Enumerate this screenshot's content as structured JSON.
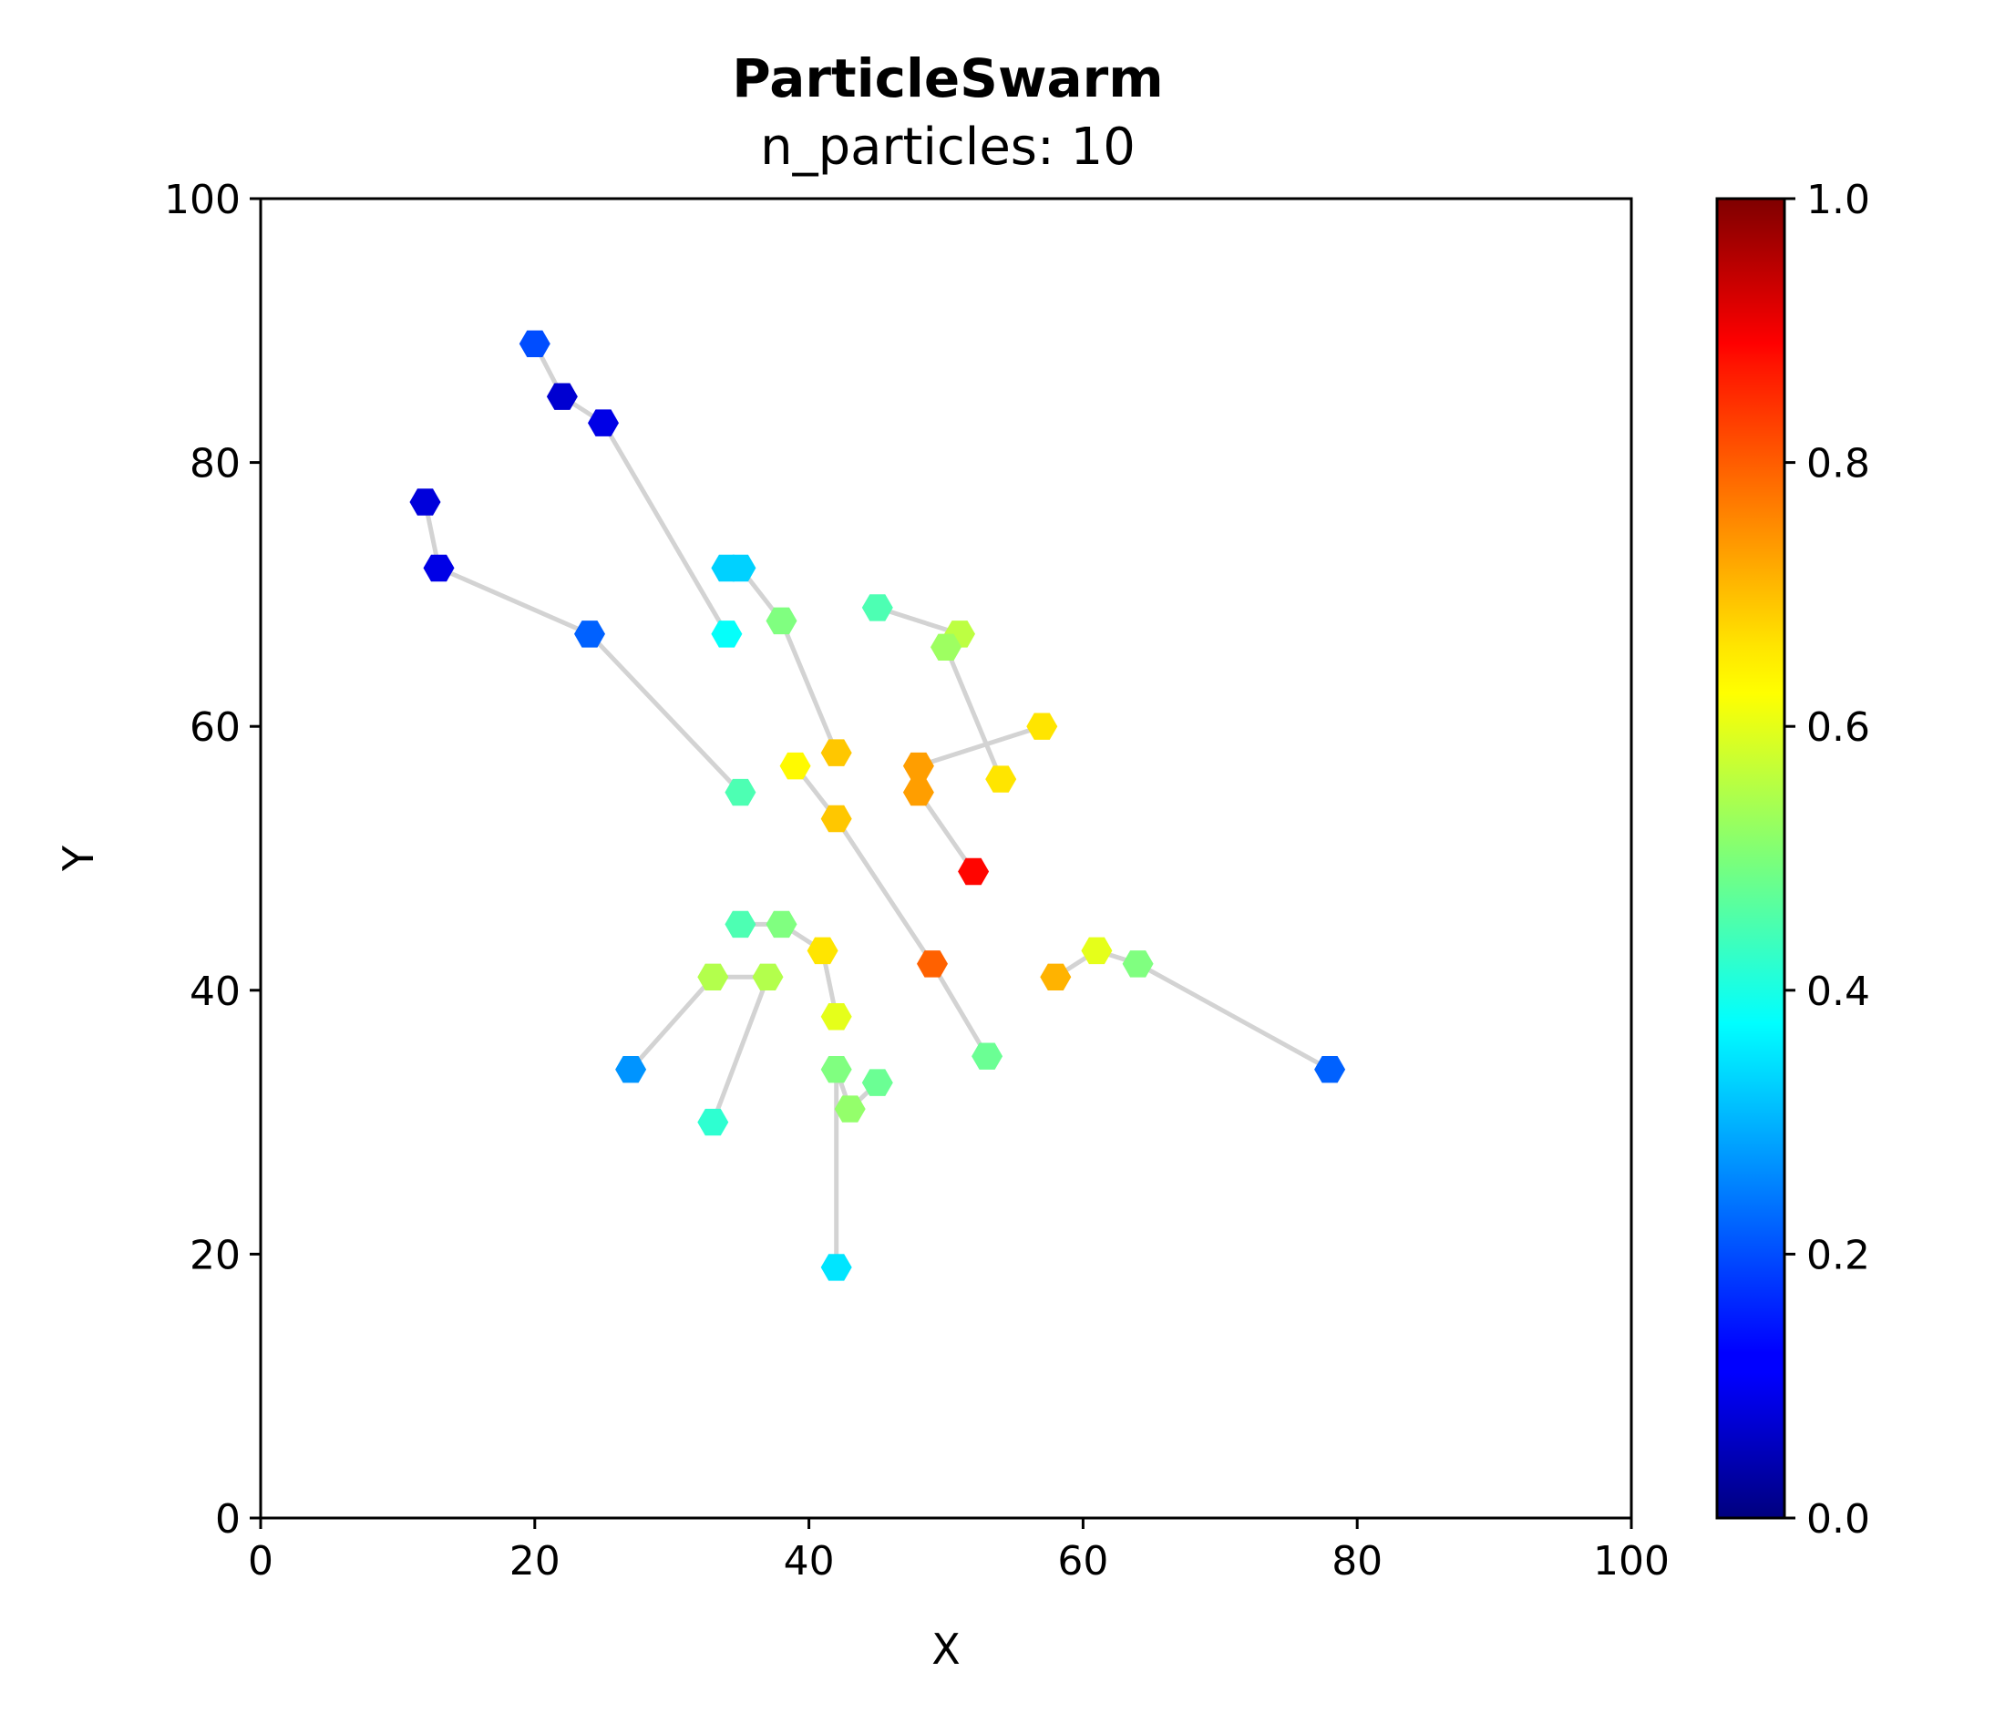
{
  "chart_data": {
    "type": "scatter",
    "title": "ParticleSwarm",
    "subtitle": "n_particles: 10",
    "xlabel": "X",
    "ylabel": "Y",
    "xlim": [
      0,
      100
    ],
    "ylim": [
      0,
      100
    ],
    "xticks": [
      "0",
      "20",
      "40",
      "60",
      "80",
      "100"
    ],
    "yticks": [
      "0",
      "20",
      "40",
      "60",
      "80",
      "100"
    ],
    "grid": false,
    "colormap": "jet",
    "colorbar": {
      "min": 0,
      "max": 1,
      "ticks": [
        "0.0",
        "0.2",
        "0.4",
        "0.6",
        "0.8",
        "1.0"
      ]
    },
    "trail_color": "#d3d3d3",
    "trajectories": [
      [
        {
          "x": 20,
          "y": 89,
          "v": 0.2
        },
        {
          "x": 22,
          "y": 85,
          "v": 0.08
        },
        {
          "x": 25,
          "y": 83,
          "v": 0.1
        },
        {
          "x": 34,
          "y": 67,
          "v": 0.38
        }
      ],
      [
        {
          "x": 12,
          "y": 77,
          "v": 0.09
        },
        {
          "x": 13,
          "y": 72,
          "v": 0.1
        },
        {
          "x": 24,
          "y": 67,
          "v": 0.22
        },
        {
          "x": 35,
          "y": 55,
          "v": 0.45
        }
      ],
      [
        {
          "x": 34,
          "y": 72,
          "v": 0.33
        },
        {
          "x": 35,
          "y": 72,
          "v": 0.33
        },
        {
          "x": 38,
          "y": 68,
          "v": 0.5
        },
        {
          "x": 42,
          "y": 58,
          "v": 0.68
        }
      ],
      [
        {
          "x": 45,
          "y": 69,
          "v": 0.45
        },
        {
          "x": 51,
          "y": 67,
          "v": 0.56
        },
        {
          "x": 50,
          "y": 66,
          "v": 0.53
        },
        {
          "x": 54,
          "y": 56,
          "v": 0.65
        }
      ],
      [
        {
          "x": 57,
          "y": 60,
          "v": 0.65
        },
        {
          "x": 48,
          "y": 57,
          "v": 0.72
        },
        {
          "x": 48,
          "y": 55,
          "v": 0.72
        },
        {
          "x": 52,
          "y": 49,
          "v": 0.87
        }
      ],
      [
        {
          "x": 39,
          "y": 57,
          "v": 0.63
        },
        {
          "x": 42,
          "y": 53,
          "v": 0.68
        },
        {
          "x": 49,
          "y": 42,
          "v": 0.78
        },
        {
          "x": 53,
          "y": 35,
          "v": 0.48
        }
      ],
      [
        {
          "x": 35,
          "y": 45,
          "v": 0.45
        },
        {
          "x": 38,
          "y": 45,
          "v": 0.5
        },
        {
          "x": 41,
          "y": 43,
          "v": 0.65
        },
        {
          "x": 42,
          "y": 38,
          "v": 0.6
        }
      ],
      [
        {
          "x": 27,
          "y": 34,
          "v": 0.27
        },
        {
          "x": 33,
          "y": 41,
          "v": 0.55
        },
        {
          "x": 37,
          "y": 41,
          "v": 0.55
        },
        {
          "x": 33,
          "y": 30,
          "v": 0.42
        }
      ],
      [
        {
          "x": 42,
          "y": 19,
          "v": 0.35
        },
        {
          "x": 42,
          "y": 34,
          "v": 0.5
        },
        {
          "x": 43,
          "y": 31,
          "v": 0.52
        },
        {
          "x": 45,
          "y": 33,
          "v": 0.48
        }
      ],
      [
        {
          "x": 78,
          "y": 34,
          "v": 0.22
        },
        {
          "x": 64,
          "y": 42,
          "v": 0.5
        },
        {
          "x": 61,
          "y": 43,
          "v": 0.6
        },
        {
          "x": 58,
          "y": 41,
          "v": 0.7
        }
      ]
    ]
  }
}
